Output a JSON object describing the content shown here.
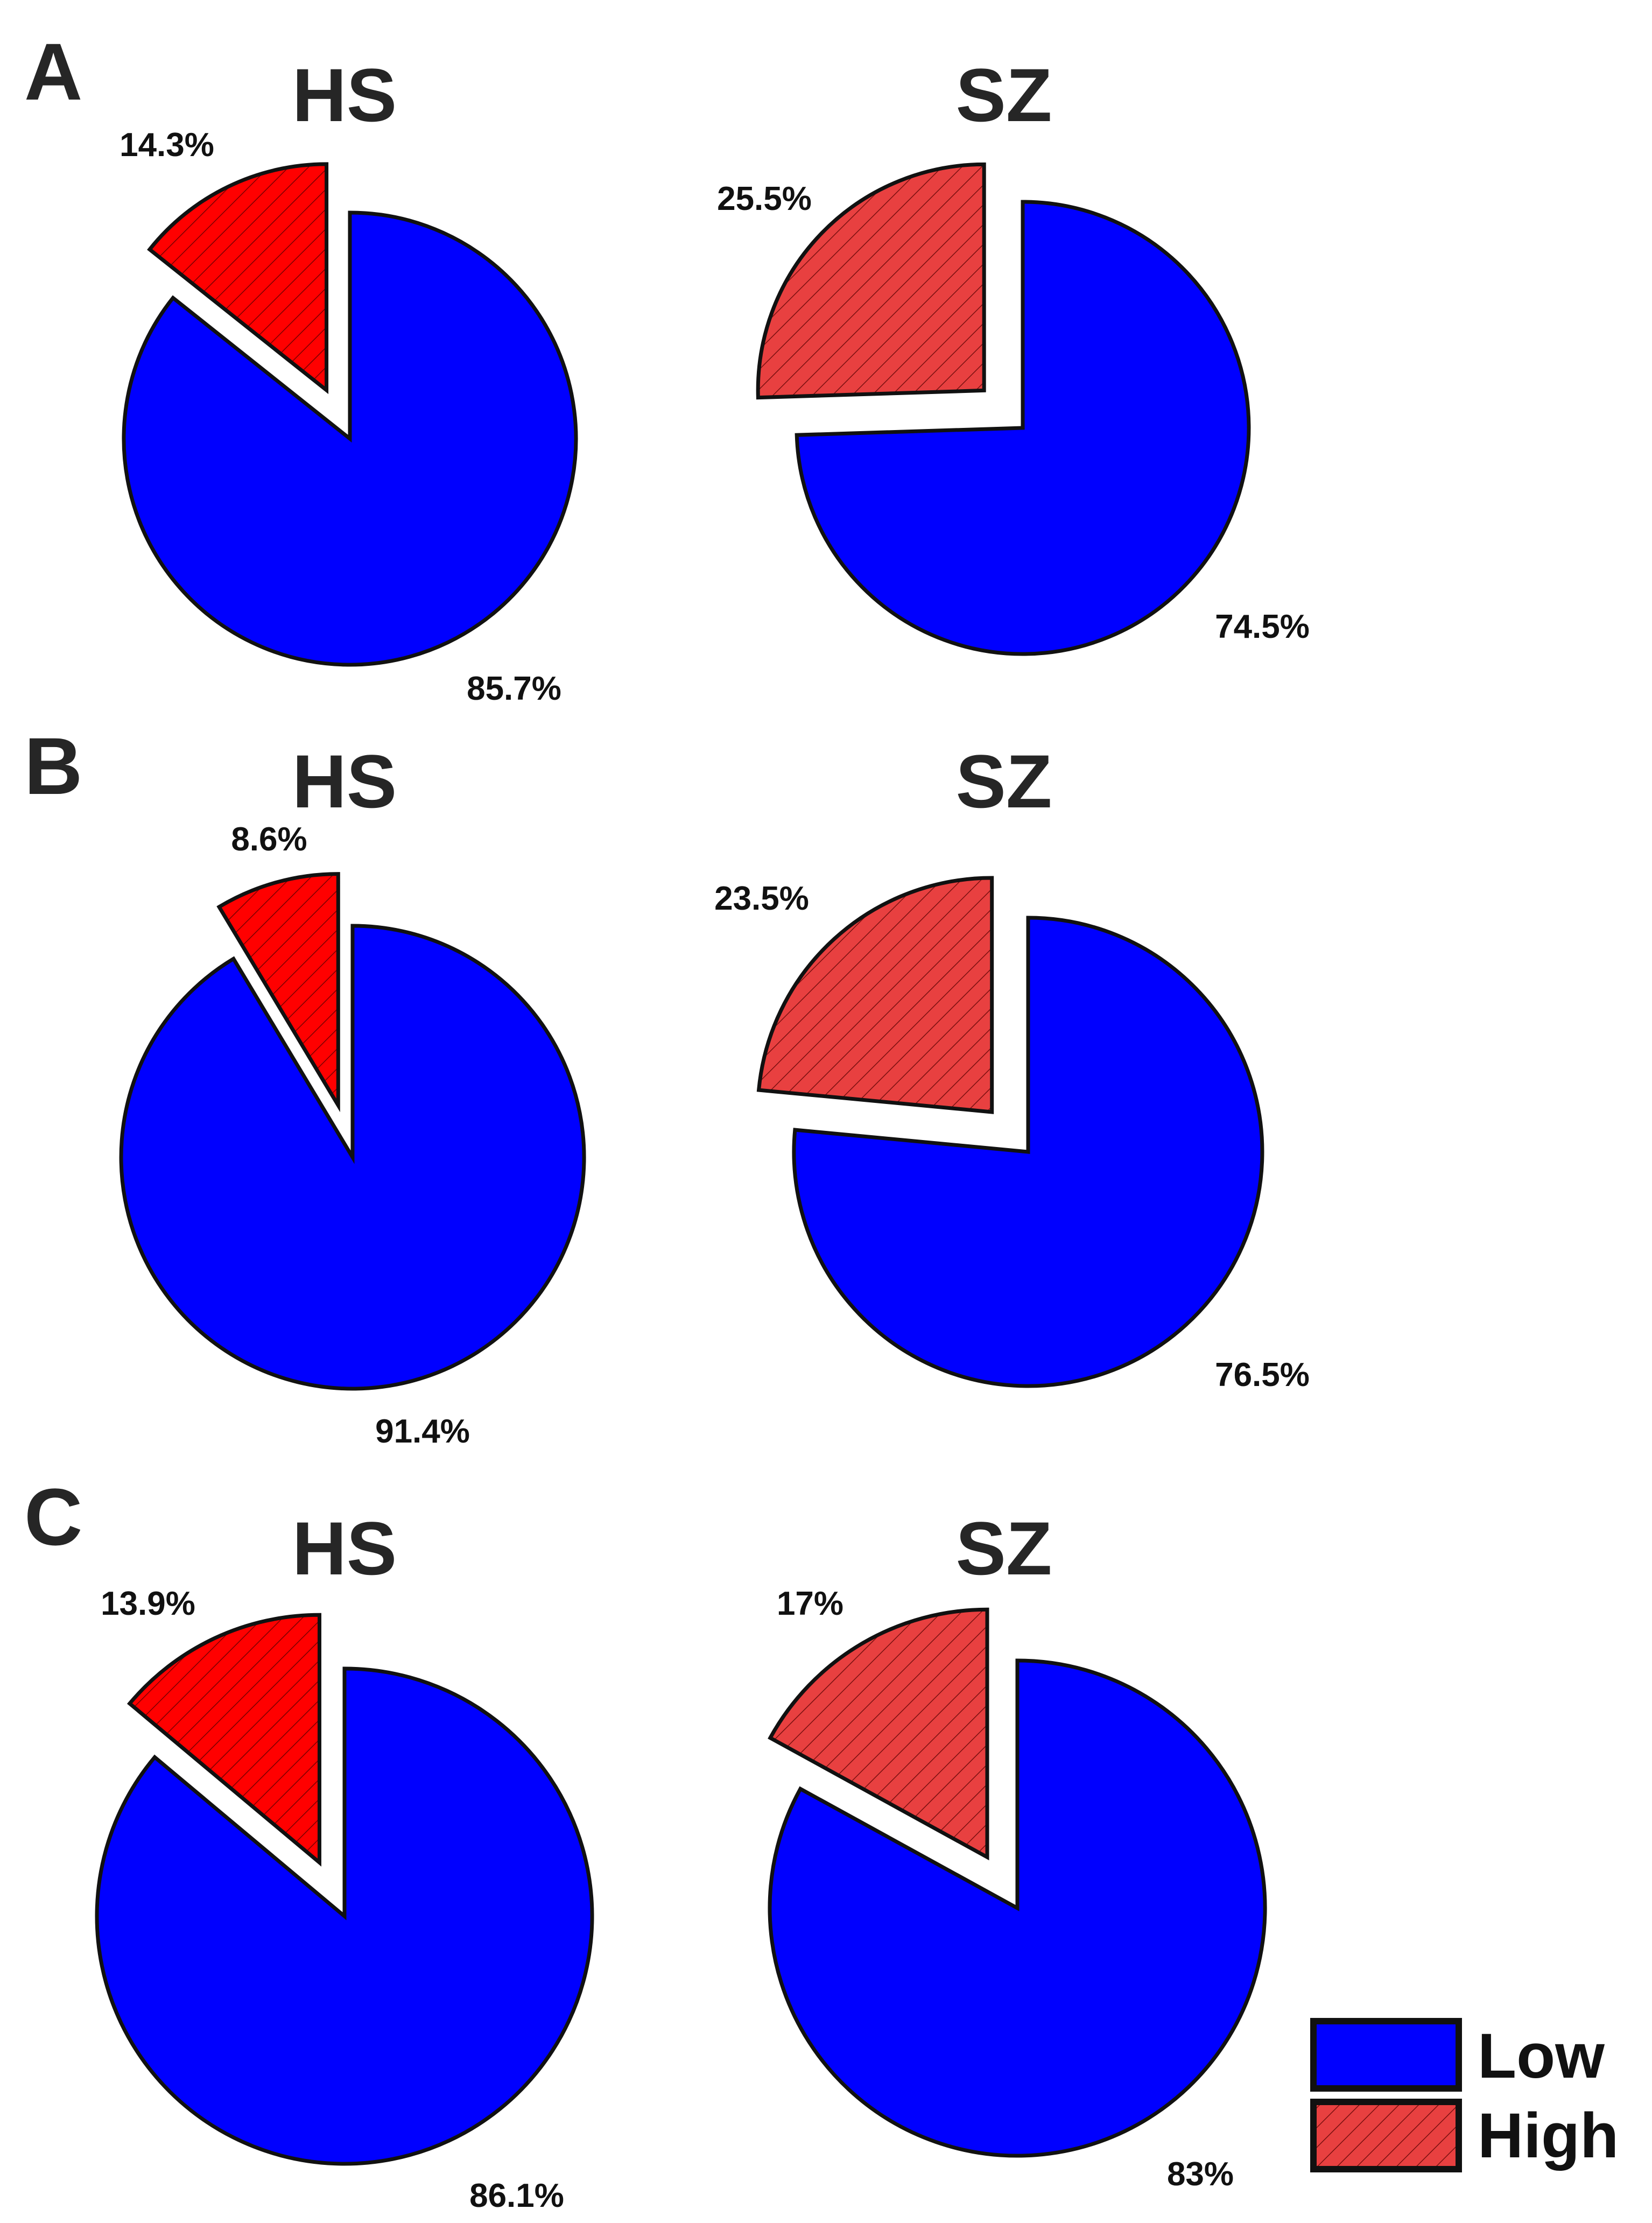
{
  "colors": {
    "low": "#0000ff",
    "high_hs": "#ff0000",
    "high_sz": "#e84040",
    "outline": "#111111",
    "text": "#262626"
  },
  "chart_data": [
    {
      "panel": "A",
      "type": "pie",
      "title": "HS",
      "slices": [
        {
          "name": "Low",
          "value": 85.7,
          "label": "85.7%"
        },
        {
          "name": "High",
          "value": 14.3,
          "label": "14.3%"
        }
      ]
    },
    {
      "panel": "A",
      "type": "pie",
      "title": "SZ",
      "slices": [
        {
          "name": "Low",
          "value": 74.5,
          "label": "74.5%"
        },
        {
          "name": "High",
          "value": 25.5,
          "label": "25.5%"
        }
      ]
    },
    {
      "panel": "B",
      "type": "pie",
      "title": "HS",
      "slices": [
        {
          "name": "Low",
          "value": 91.4,
          "label": "91.4%"
        },
        {
          "name": "High",
          "value": 8.6,
          "label": "8.6%"
        }
      ]
    },
    {
      "panel": "B",
      "type": "pie",
      "title": "SZ",
      "slices": [
        {
          "name": "Low",
          "value": 76.5,
          "label": "76.5%"
        },
        {
          "name": "High",
          "value": 23.5,
          "label": "23.5%"
        }
      ]
    },
    {
      "panel": "C",
      "type": "pie",
      "title": "HS",
      "slices": [
        {
          "name": "Low",
          "value": 86.1,
          "label": "86.1%"
        },
        {
          "name": "High",
          "value": 13.9,
          "label": "13.9%"
        }
      ]
    },
    {
      "panel": "C",
      "type": "pie",
      "title": "SZ",
      "slices": [
        {
          "name": "Low",
          "value": 83,
          "label": "83%"
        },
        {
          "name": "High",
          "value": 17,
          "label": "17%"
        }
      ]
    }
  ],
  "panels": [
    "A",
    "B",
    "C"
  ],
  "legend": {
    "low_label": "Low",
    "high_label": "High",
    "placement": "bottom-right"
  }
}
